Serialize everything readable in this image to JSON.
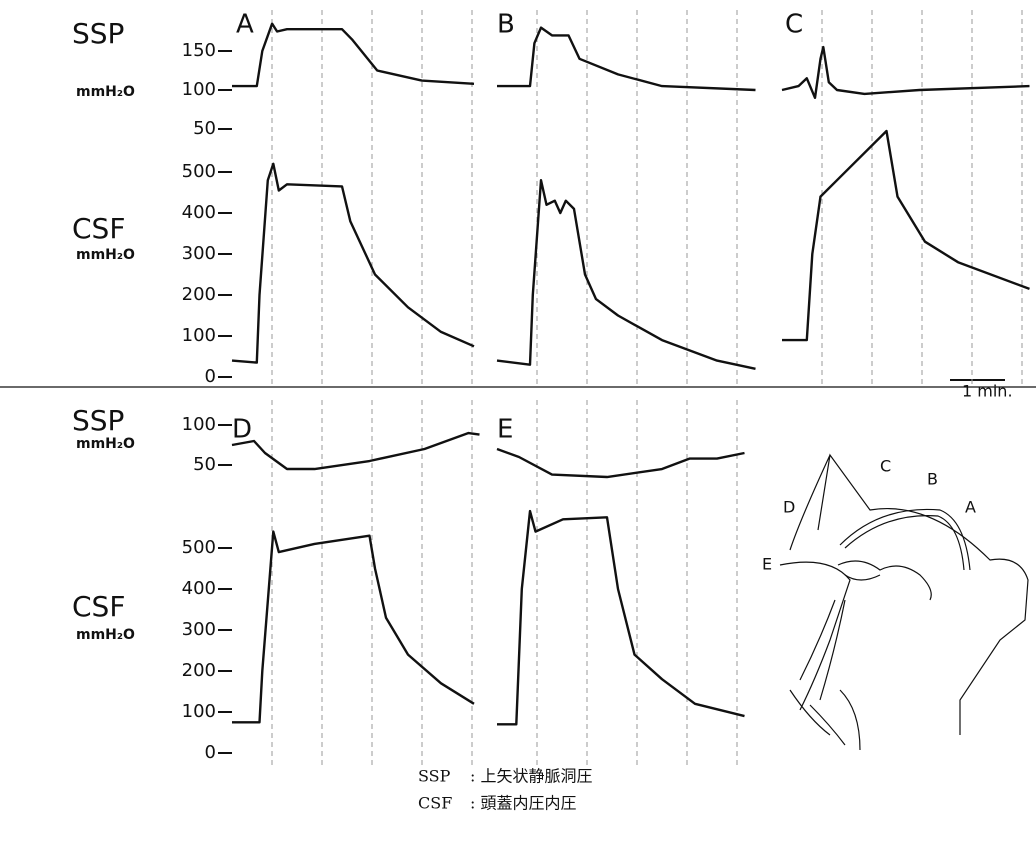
{
  "rows": [
    {
      "ssp": {
        "label": "SSP",
        "unit": "mmH₂O",
        "ticks": [
          150,
          100,
          50
        ]
      },
      "csf": {
        "label": "CSF",
        "unit": "mmH₂O",
        "ticks": [
          500,
          400,
          300,
          200,
          100,
          0
        ]
      },
      "panels": [
        {
          "label": "A",
          "ssp": {
            "t": [
              0,
              0.45,
              0.55,
              0.73,
              0.82,
              1.0,
              2.0,
              2.18,
              2.64,
              3.45,
              4.4
            ],
            "v": [
              105,
              105,
              150,
              185,
              175,
              178,
              178,
              165,
              125,
              112,
              108
            ]
          },
          "csf": {
            "t": [
              0,
              0.45,
              0.5,
              0.65,
              0.75,
              0.85,
              1.0,
              2.0,
              2.15,
              2.6,
              3.2,
              3.8,
              4.4
            ],
            "v": [
              40,
              35,
              200,
              480,
              520,
              455,
              470,
              465,
              380,
              250,
              170,
              110,
              75
            ]
          }
        },
        {
          "label": "B",
          "ssp": {
            "t": [
              0,
              0.6,
              0.68,
              0.8,
              1.0,
              1.3,
              1.5,
              2.2,
              3.0,
              4.7
            ],
            "v": [
              105,
              105,
              160,
              180,
              170,
              170,
              140,
              120,
              105,
              100
            ]
          },
          "csf": {
            "t": [
              0,
              0.6,
              0.65,
              0.8,
              0.9,
              1.05,
              1.15,
              1.25,
              1.4,
              1.6,
              1.8,
              2.2,
              3.0,
              4.0,
              4.7
            ],
            "v": [
              40,
              30,
              200,
              480,
              420,
              430,
              400,
              430,
              410,
              250,
              190,
              150,
              90,
              40,
              20
            ]
          }
        },
        {
          "label": "C",
          "ssp": {
            "t": [
              0,
              0.3,
              0.45,
              0.6,
              0.7,
              0.75,
              0.85,
              1.0,
              1.5,
              2.5,
              4.5
            ],
            "v": [
              100,
              105,
              115,
              90,
              140,
              155,
              110,
              100,
              95,
              100,
              105
            ]
          },
          "csf": {
            "t": [
              0,
              0.45,
              0.55,
              0.7,
              1.0,
              1.9,
              2.1,
              2.6,
              3.2,
              4.5
            ],
            "v": [
              90,
              90,
              300,
              440,
              480,
              600,
              440,
              330,
              280,
              215
            ]
          }
        }
      ]
    },
    {
      "ssp": {
        "label": "SSP",
        "unit": "mmH₂O",
        "ticks": [
          100,
          50
        ]
      },
      "csf": {
        "label": "CSF",
        "unit": "mmH₂O",
        "ticks": [
          500,
          400,
          300,
          200,
          100,
          0
        ]
      },
      "panels": [
        {
          "label": "D",
          "ssp": {
            "t": [
              0,
              0.4,
              0.6,
              1.0,
              1.5,
              2.5,
              3.5,
              4.3,
              4.5
            ],
            "v": [
              75,
              80,
              65,
              45,
              45,
              55,
              70,
              90,
              88
            ]
          },
          "csf": {
            "t": [
              0,
              0.5,
              0.55,
              0.75,
              0.85,
              1.5,
              2.5,
              2.6,
              2.8,
              3.2,
              3.8,
              4.4
            ],
            "v": [
              75,
              75,
              200,
              540,
              490,
              510,
              530,
              450,
              330,
              240,
              170,
              120
            ]
          }
        },
        {
          "label": "E",
          "ssp": {
            "t": [
              0,
              0.4,
              1.0,
              2.0,
              3.0,
              3.5,
              4.0,
              4.5
            ],
            "v": [
              70,
              60,
              38,
              35,
              45,
              58,
              58,
              65
            ]
          },
          "csf": {
            "t": [
              0,
              0.35,
              0.45,
              0.6,
              0.7,
              1.2,
              2.0,
              2.2,
              2.5,
              3.0,
              3.6,
              4.5
            ],
            "v": [
              70,
              70,
              400,
              590,
              540,
              570,
              575,
              400,
              240,
              180,
              120,
              90
            ]
          }
        }
      ]
    }
  ],
  "scale_bar": "1 min.",
  "diagram": {
    "labels": [
      "A",
      "B",
      "C",
      "D",
      "E"
    ]
  },
  "legend": [
    {
      "term": "SSP",
      "desc": ": 上矢状静脈洞圧"
    },
    {
      "term": "CSF",
      "desc": ": 頭蓋内圧内圧"
    }
  ]
}
